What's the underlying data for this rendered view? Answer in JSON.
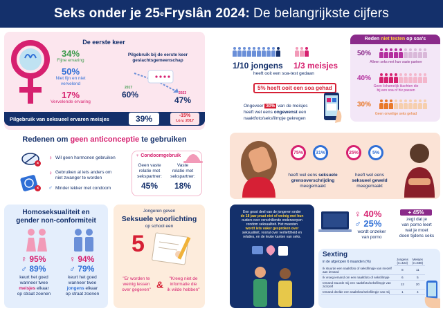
{
  "header": {
    "title_a": "Seks onder je 25",
    "title_sup": "e",
    "title_b": " Fryslân 2024:",
    "title_c": "De belangrijkste cijfers"
  },
  "eerste_keer": {
    "title": "De eerste keer",
    "fijn_pct": "34%",
    "fijn_label": "Fijne ervaring",
    "neutraal_pct": "50%",
    "neutraal_label": "Niet fijn en niet vervelend",
    "vervelend_pct": "17%",
    "vervelend_label": "Vervelende ervaring",
    "pil_title": "Pilgebruik bij de eerste keer geslachtsgemeenschap",
    "year_a": "2017",
    "pct_a": "60%",
    "year_b": "2023",
    "pct_b": "47%"
  },
  "pil_bar": {
    "label": "Pilgebruik van seksueel ervaren meisjes",
    "pct": "39%",
    "change": "-15%",
    "change_sub": "t.o.v. 2017"
  },
  "anticonceptie": {
    "title_a": "Redenen om ",
    "title_b": "geen anticonceptie",
    "title_c": " te gebruiken",
    "r1": "Wil geen hormonen gebruiken",
    "r2a": "Gebruiken al iets anders om",
    "r2b": "niet zwanger te worden",
    "r3": "Minder lekker met condoom",
    "condoom_title": "Condoomgebruik",
    "c1_label_a": "Geen vaste",
    "c1_label_b": "relatie met",
    "c1_label_c": "sekspartner:",
    "c1_pct": "45%",
    "c2_label_a": "Vaste",
    "c2_label_b": "relatie met",
    "c2_label_c": "sekspartner:",
    "c2_pct": "18%"
  },
  "homo": {
    "title_a": "Homoseksualiteit en",
    "title_b": "gender non-conformiteit",
    "m_f": "95%",
    "m_m": "89%",
    "m_text_a": "keurt het goed",
    "m_text_b": "wanneer twee",
    "m_text_c": "meisjes",
    "m_text_d": "elkaar",
    "m_text_e": "op straat zoenen",
    "j_f": "94%",
    "j_m": "79%",
    "j_text_a": "keurt het goed",
    "j_text_b": "wanneer twee",
    "j_text_c": "jongens",
    "j_text_d": "elkaar",
    "j_text_e": "op straat zoenen"
  },
  "voorlichting": {
    "pre": "Jongeren geven",
    "title": "Seksuele voorlichting",
    "post": "op school een",
    "grade": "5",
    "q1a": "\"Er worden te",
    "q1b": "weinig lessen",
    "q1c": "over gegeven\"",
    "amp": "&",
    "q2a": "\"Kreeg niet de",
    "q2b": "informatie die",
    "q2c": "ik wilde hebben\""
  },
  "soa": {
    "boys": "1/10 jongens",
    "girls": "1/3 meisjes",
    "sub": "heeft ooit een soa-test gedaan",
    "had": "5% heeft ooit een soa gehad",
    "reasons_title_a": "Reden ",
    "reasons_title_b": "niet testen",
    "reasons_title_c": " op soa's",
    "r1_pct": "50%",
    "r1_label": "Alleen seks met hun vaste partner",
    "r2_pct": "40%",
    "r2_label_a": "Geen lichamelijk klachten die",
    "r2_label_b": "bij een soa of hiv passen",
    "r3_pct": "30%",
    "r3_label": "Geen onveilige seks gehad"
  },
  "naakt": {
    "a": "Ongeveer ",
    "pct": "30%",
    "b": " van de meisjes",
    "c": "heeft wel eens ",
    "d": "ongewenst",
    "e": " een",
    "f": "naaktfoto/seksfilmpje gekregen"
  },
  "grens": {
    "p1": "75%",
    "p2": "31%",
    "p3": "25%",
    "p4": "5%",
    "t1a": "heeft wel eens ",
    "t1b": "seksuele",
    "t1c": "grensoverschrijding",
    "t1d": "meegemaakt",
    "t2a": "heeft wel eens",
    "t2b": "seksueel geweld",
    "t2c": "meegemaakt"
  },
  "praat": {
    "a": "Een groot deel van de jongeren onder",
    "b": "de 18 jaar praat niet of weinig met hun",
    "c": "ouders over verschillende onderwerpen",
    "d": "rondom seksualiteit. Het meesten",
    "e": "wordt iets vaker gesproken over",
    "f": "seksualiteit, vooral over verliefdheid en",
    "g": "relaties, en de leuke kanten van seks."
  },
  "porno": {
    "f": "40%",
    "m": "25%",
    "text_a": "wordt onzeker",
    "text_b": "van porno",
    "plus": "+ 45%",
    "plus_a": "zegt dat je",
    "plus_b": "van porno leert",
    "plus_c": "wat je moet",
    "plus_d": "doen tijdens seks"
  },
  "sexting": {
    "title": "Sexting",
    "sub": "in de afgelopen 6 maanden (%)",
    "col_a": "Jongens (n=423)",
    "col_b": "Meisjes (n=688)",
    "rows": [
      {
        "label": "Ik stuurde een naaktfoto of seksfilmpje van mezelf aan iemand",
        "a": "8",
        "b": "11"
      },
      {
        "label": "Ik vroeg iemand om een naaktfoto of seksfilmpje",
        "a": "6",
        "b": "5"
      },
      {
        "label": "Iemand stuurde mij een naaktfoto/seksfilmpje van zichzelf",
        "a": "12",
        "b": "20"
      },
      {
        "label": "Iemand deelde een naaktfoto/seksfilmpje van mij",
        "a": "1",
        "b": "4"
      }
    ]
  },
  "colors": {
    "navy": "#14306b",
    "magenta": "#d6206f",
    "blue": "#2f6fd6",
    "red": "#d62035"
  }
}
